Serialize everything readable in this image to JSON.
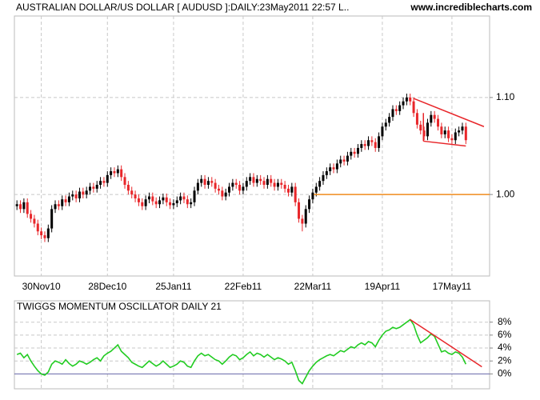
{
  "chart_data": [
    {
      "type": "candlestick",
      "title": "AUSTRALIAN DOLLAR/US DOLLAR [ AUDUSD ]:DAILY:23May2011 22:57 L..",
      "source": "www.incrediblecharts.com",
      "categories": [
        null,
        null,
        null,
        null,
        null,
        null,
        null,
        "30Nov10",
        null,
        null,
        null,
        null,
        null,
        null,
        null,
        null,
        null,
        null,
        null,
        null,
        null,
        null,
        null,
        null,
        null,
        null,
        "28Dec10",
        null,
        null,
        null,
        null,
        null,
        null,
        null,
        null,
        null,
        null,
        null,
        null,
        null,
        null,
        null,
        null,
        null,
        null,
        "25Jan11",
        null,
        null,
        null,
        null,
        null,
        null,
        null,
        null,
        null,
        null,
        null,
        null,
        null,
        null,
        null,
        null,
        null,
        null,
        null,
        "22Feb11",
        null,
        null,
        null,
        null,
        null,
        null,
        null,
        null,
        null,
        null,
        null,
        null,
        null,
        null,
        null,
        null,
        null,
        null,
        null,
        "22Mar11",
        null,
        null,
        null,
        null,
        null,
        null,
        null,
        null,
        null,
        null,
        null,
        null,
        null,
        null,
        null,
        null,
        null,
        null,
        null,
        "19Apr11",
        null,
        null,
        null,
        null,
        null,
        null,
        null,
        null,
        null,
        null,
        null,
        null,
        null,
        null,
        null,
        null,
        null,
        null,
        null,
        "17May11",
        null,
        null,
        null,
        null
      ],
      "open": [
        0.988,
        0.99,
        0.985,
        0.992,
        0.98,
        0.975,
        0.97,
        0.962,
        0.958,
        0.955,
        0.965,
        0.985,
        0.99,
        0.988,
        0.995,
        0.992,
        0.998,
        1.0,
        0.996,
        1.003,
        1.0,
        1.004,
        1.008,
        1.006,
        1.01,
        1.014,
        1.012,
        1.02,
        1.024,
        1.022,
        1.026,
        1.018,
        1.01,
        1.004,
        1.0,
        0.996,
        0.992,
        0.988,
        0.995,
        0.998,
        0.993,
        0.99,
        0.994,
        0.997,
        0.992,
        0.989,
        0.991,
        0.994,
        0.998,
        0.995,
        0.99,
        0.992,
        1.004,
        1.012,
        1.016,
        1.01,
        1.014,
        1.012,
        1.006,
        1.004,
        0.998,
        1.002,
        1.008,
        1.012,
        1.01,
        1.004,
        1.008,
        1.014,
        1.018,
        1.012,
        1.016,
        1.014,
        1.01,
        1.016,
        1.012,
        1.008,
        1.012,
        1.01,
        1.006,
        1.002,
        1.008,
        0.992,
        0.975,
        0.97,
        0.985,
        0.995,
        1.002,
        1.008,
        1.014,
        1.02,
        1.024,
        1.028,
        1.026,
        1.032,
        1.036,
        1.034,
        1.04,
        1.044,
        1.042,
        1.048,
        1.052,
        1.05,
        1.056,
        1.054,
        1.048,
        1.06,
        1.07,
        1.074,
        1.08,
        1.088,
        1.086,
        1.092,
        1.096,
        1.1,
        1.096,
        1.084,
        1.072,
        1.066,
        1.06,
        1.074,
        1.082,
        1.078,
        1.07,
        1.062,
        1.066,
        1.058,
        1.056,
        1.064,
        1.066,
        1.07
      ],
      "high": [
        0.994,
        0.994,
        0.996,
        0.996,
        0.984,
        0.979,
        0.974,
        0.966,
        0.962,
        0.969,
        0.989,
        0.994,
        0.994,
        0.999,
        0.999,
        1.002,
        1.004,
        1.004,
        1.007,
        1.007,
        1.008,
        1.012,
        1.012,
        1.014,
        1.018,
        1.018,
        1.024,
        1.028,
        1.028,
        1.03,
        1.03,
        1.022,
        1.014,
        1.008,
        1.004,
        1.0,
        0.996,
        0.999,
        1.002,
        1.002,
        0.997,
        0.998,
        1.001,
        1.001,
        0.996,
        0.995,
        0.998,
        1.002,
        1.002,
        0.999,
        0.996,
        1.008,
        1.016,
        1.02,
        1.02,
        1.018,
        1.018,
        1.016,
        1.01,
        1.008,
        1.006,
        1.012,
        1.016,
        1.016,
        1.014,
        1.012,
        1.018,
        1.022,
        1.022,
        1.02,
        1.02,
        1.018,
        1.02,
        1.02,
        1.016,
        1.016,
        1.016,
        1.014,
        1.01,
        1.012,
        1.012,
        0.996,
        0.979,
        0.989,
        0.999,
        1.006,
        1.012,
        1.018,
        1.024,
        1.028,
        1.032,
        1.032,
        1.036,
        1.04,
        1.04,
        1.044,
        1.048,
        1.048,
        1.052,
        1.056,
        1.056,
        1.06,
        1.06,
        1.058,
        1.064,
        1.074,
        1.078,
        1.084,
        1.092,
        1.092,
        1.096,
        1.1,
        1.104,
        1.104,
        1.1,
        1.088,
        1.076,
        1.07,
        1.078,
        1.086,
        1.086,
        1.082,
        1.074,
        1.07,
        1.07,
        1.062,
        1.068,
        1.07,
        1.074,
        1.074
      ],
      "low": [
        0.984,
        0.981,
        0.981,
        0.976,
        0.971,
        0.966,
        0.958,
        0.954,
        0.951,
        0.951,
        0.961,
        0.981,
        0.984,
        0.984,
        0.988,
        0.988,
        0.994,
        0.992,
        0.992,
        0.996,
        0.996,
        1.0,
        1.002,
        1.002,
        1.006,
        1.008,
        1.008,
        1.016,
        1.018,
        1.018,
        1.014,
        1.006,
        1.0,
        0.996,
        0.992,
        0.988,
        0.984,
        0.984,
        0.991,
        0.989,
        0.986,
        0.986,
        0.99,
        0.988,
        0.985,
        0.985,
        0.987,
        0.99,
        0.991,
        0.986,
        0.986,
        0.988,
        1.0,
        1.008,
        1.006,
        1.006,
        1.008,
        1.002,
        1.0,
        0.994,
        0.994,
        0.998,
        1.004,
        1.006,
        1.0,
        1.0,
        1.004,
        1.01,
        1.008,
        1.008,
        1.01,
        1.006,
        1.006,
        1.008,
        1.004,
        1.004,
        1.006,
        1.002,
        0.998,
        0.998,
        0.988,
        0.971,
        0.962,
        0.966,
        0.981,
        0.991,
        0.998,
        1.004,
        1.01,
        1.016,
        1.02,
        1.022,
        1.022,
        1.028,
        1.03,
        1.03,
        1.036,
        1.038,
        1.038,
        1.044,
        1.046,
        1.046,
        1.05,
        1.044,
        1.044,
        1.056,
        1.066,
        1.07,
        1.076,
        1.082,
        1.082,
        1.088,
        1.092,
        1.092,
        1.08,
        1.068,
        1.062,
        1.056,
        1.056,
        1.07,
        1.074,
        1.066,
        1.058,
        1.058,
        1.054,
        1.052,
        1.052,
        1.06,
        1.062,
        1.052
      ],
      "close": [
        0.99,
        0.985,
        0.992,
        0.98,
        0.975,
        0.97,
        0.962,
        0.958,
        0.955,
        0.965,
        0.985,
        0.99,
        0.988,
        0.995,
        0.992,
        0.998,
        1.0,
        0.996,
        1.003,
        1.0,
        1.004,
        1.008,
        1.006,
        1.01,
        1.014,
        1.012,
        1.02,
        1.024,
        1.022,
        1.026,
        1.018,
        1.01,
        1.004,
        1.0,
        0.996,
        0.992,
        0.988,
        0.995,
        0.998,
        0.993,
        0.99,
        0.994,
        0.997,
        0.992,
        0.989,
        0.991,
        0.994,
        0.998,
        0.995,
        0.99,
        0.992,
        1.004,
        1.012,
        1.016,
        1.01,
        1.014,
        1.012,
        1.006,
        1.004,
        0.998,
        1.002,
        1.008,
        1.012,
        1.01,
        1.004,
        1.008,
        1.014,
        1.018,
        1.012,
        1.016,
        1.014,
        1.01,
        1.016,
        1.012,
        1.008,
        1.012,
        1.01,
        1.006,
        1.002,
        1.008,
        0.992,
        0.975,
        0.97,
        0.985,
        0.995,
        1.002,
        1.008,
        1.014,
        1.02,
        1.024,
        1.028,
        1.026,
        1.032,
        1.036,
        1.034,
        1.04,
        1.044,
        1.042,
        1.048,
        1.052,
        1.05,
        1.056,
        1.054,
        1.048,
        1.06,
        1.07,
        1.074,
        1.08,
        1.088,
        1.086,
        1.092,
        1.096,
        1.1,
        1.096,
        1.084,
        1.072,
        1.066,
        1.06,
        1.074,
        1.082,
        1.078,
        1.07,
        1.062,
        1.066,
        1.058,
        1.056,
        1.064,
        1.066,
        1.07,
        1.056
      ],
      "up_color": "#000000",
      "down_color": "#e8262a",
      "ylim": [
        0.916,
        1.184
      ],
      "yticks": [
        {
          "value": 1.1,
          "label": "1.10"
        },
        {
          "value": 1,
          "label": "1.00"
        }
      ],
      "grid": true,
      "lines": [
        {
          "x": [
            114,
            134.2
          ],
          "y": [
            1.099,
            1.07
          ],
          "color": "#e8262a"
        },
        {
          "x": [
            116.8,
            129
          ],
          "y": [
            1.055,
            1.05
          ],
          "color": "#e8262a"
        },
        {
          "x": [
            116.8,
            116.8
          ],
          "y": [
            1.055,
            1.084
          ],
          "color": "#e8262a"
        },
        {
          "x": [
            85.3,
            136
          ],
          "y": [
            1,
            1
          ],
          "color": "#f08c1e"
        }
      ]
    },
    {
      "type": "line",
      "title": "TWIGGS MOMENTUM OSCILLATOR DAILY 21",
      "values": [
        3.0,
        3.2,
        2.5,
        3.0,
        2.0,
        1.2,
        0.5,
        0.0,
        -0.2,
        0.3,
        1.5,
        2.0,
        1.8,
        1.5,
        2.2,
        1.6,
        1.2,
        1.5,
        2.0,
        1.8,
        1.5,
        1.8,
        2.2,
        2.5,
        2.0,
        2.8,
        3.2,
        3.5,
        4.0,
        4.5,
        3.5,
        3.0,
        2.5,
        1.8,
        1.5,
        1.2,
        1.0,
        1.5,
        2.0,
        1.6,
        1.2,
        1.5,
        2.0,
        1.5,
        1.0,
        1.2,
        1.5,
        2.0,
        1.8,
        1.2,
        1.0,
        2.0,
        2.8,
        3.2,
        2.8,
        3.0,
        2.6,
        2.2,
        2.0,
        1.5,
        2.0,
        2.6,
        3.0,
        2.8,
        2.2,
        2.5,
        3.0,
        3.4,
        2.8,
        3.2,
        3.0,
        2.6,
        3.0,
        2.6,
        2.2,
        2.5,
        2.3,
        2.0,
        1.5,
        1.8,
        0.5,
        -1.0,
        -1.5,
        -0.5,
        0.5,
        1.2,
        1.8,
        2.2,
        2.5,
        2.8,
        3.0,
        2.8,
        3.2,
        3.6,
        3.4,
        3.8,
        4.2,
        4.0,
        4.5,
        4.8,
        4.5,
        5.0,
        4.8,
        4.2,
        5.2,
        6.0,
        6.6,
        6.8,
        7.2,
        7.0,
        7.2,
        7.6,
        8.0,
        8.4,
        7.6,
        6.0,
        4.8,
        5.2,
        5.6,
        6.2,
        5.8,
        4.6,
        3.4,
        3.6,
        3.2,
        3.0,
        3.4,
        3.2,
        2.6,
        1.5
      ],
      "color": "#22cc22",
      "zero_line_color": "#6666aa",
      "ylim": [
        -2.3,
        11.3
      ],
      "yticks": [
        {
          "value": 8,
          "label": "8%"
        },
        {
          "value": 6,
          "label": "6%"
        },
        {
          "value": 4,
          "label": "4%"
        },
        {
          "value": 2,
          "label": "2%"
        },
        {
          "value": 0,
          "label": "0%"
        }
      ],
      "grid": true,
      "lines": [
        {
          "x": [
            113,
            133.6
          ],
          "y": [
            8.4,
            1.1
          ],
          "color": "#e8262a"
        }
      ]
    }
  ]
}
